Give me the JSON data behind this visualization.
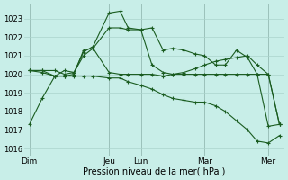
{
  "xlabel": "Pression niveau de la mer( hPa )",
  "background_color": "#c8eee8",
  "grid_color": "#aad4cc",
  "line_color": "#1a5c20",
  "ylim_low": 1015.6,
  "ylim_high": 1023.8,
  "yticks": [
    1016,
    1017,
    1018,
    1019,
    1020,
    1021,
    1022,
    1023
  ],
  "x_day_labels": [
    "Dim",
    "Jeu",
    "Lun",
    "Mar",
    "Mer"
  ],
  "x_day_positions": [
    0.0,
    2.5,
    3.5,
    5.5,
    7.5
  ],
  "xlim_low": -0.15,
  "xlim_high": 8.0,
  "series": [
    {
      "x": [
        0.0,
        0.4,
        0.8,
        1.1,
        1.4,
        1.7,
        2.0,
        2.5,
        2.85,
        3.1,
        3.5,
        3.85,
        4.2,
        4.5,
        4.85,
        5.2,
        5.5,
        5.85,
        6.15,
        6.5,
        6.85,
        7.15,
        7.5,
        7.85
      ],
      "y": [
        1017.3,
        1018.7,
        1019.9,
        1020.2,
        1020.1,
        1021.2,
        1021.5,
        1023.3,
        1023.4,
        1022.5,
        1022.4,
        1022.5,
        1021.3,
        1021.4,
        1021.3,
        1021.1,
        1021.0,
        1020.5,
        1020.5,
        1021.3,
        1020.9,
        1020.0,
        1017.2,
        1017.3
      ]
    },
    {
      "x": [
        0.0,
        0.4,
        0.8,
        1.1,
        1.4,
        1.7,
        2.0,
        2.5,
        2.85,
        3.1,
        3.5,
        3.85,
        4.2,
        4.5,
        4.85,
        5.2,
        5.5,
        5.85,
        6.15,
        6.5,
        6.85,
        7.15,
        7.5,
        7.85
      ],
      "y": [
        1020.2,
        1020.2,
        1020.2,
        1020.0,
        1020.1,
        1021.0,
        1021.4,
        1020.1,
        1020.0,
        1020.0,
        1020.0,
        1020.0,
        1019.9,
        1020.0,
        1020.1,
        1020.3,
        1020.5,
        1020.7,
        1020.8,
        1020.9,
        1021.0,
        1020.5,
        1020.0,
        1017.3
      ]
    },
    {
      "x": [
        0.0,
        0.4,
        0.8,
        1.1,
        1.4,
        1.7,
        2.0,
        2.5,
        2.85,
        3.1,
        3.5,
        3.85,
        4.2,
        4.5,
        4.85,
        5.2,
        5.5,
        5.85,
        6.15,
        6.5,
        6.85,
        7.15,
        7.5,
        7.85
      ],
      "y": [
        1020.2,
        1020.2,
        1019.9,
        1019.9,
        1020.0,
        1021.3,
        1021.4,
        1022.5,
        1022.5,
        1022.4,
        1022.4,
        1020.5,
        1020.1,
        1020.0,
        1020.0,
        1020.0,
        1020.0,
        1020.0,
        1020.0,
        1020.0,
        1020.0,
        1020.0,
        1020.0,
        1017.3
      ]
    },
    {
      "x": [
        0.0,
        0.4,
        0.8,
        1.1,
        1.4,
        1.7,
        2.0,
        2.5,
        2.85,
        3.1,
        3.5,
        3.85,
        4.2,
        4.5,
        4.85,
        5.2,
        5.5,
        5.85,
        6.15,
        6.5,
        6.85,
        7.15,
        7.5,
        7.85
      ],
      "y": [
        1020.2,
        1020.1,
        1019.9,
        1019.9,
        1019.9,
        1019.9,
        1019.9,
        1019.8,
        1019.8,
        1019.6,
        1019.4,
        1019.2,
        1018.9,
        1018.7,
        1018.6,
        1018.5,
        1018.5,
        1018.3,
        1018.0,
        1017.5,
        1017.0,
        1016.4,
        1016.3,
        1016.7
      ]
    }
  ]
}
